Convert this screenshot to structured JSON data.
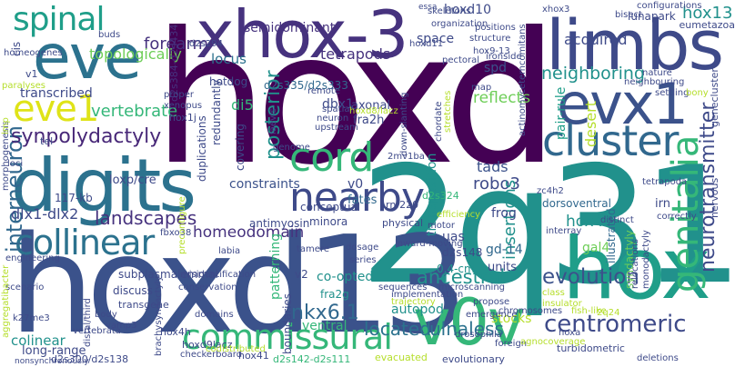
{
  "palette": {
    "dark_purple": "#46327e",
    "purple": "#482878",
    "indigo": "#3e4a89",
    "blue": "#31688e",
    "steel": "#2c728e",
    "teal": "#21918c",
    "green_teal": "#1f9e89",
    "green": "#35b779",
    "light_green": "#6ece58",
    "lime": "#b5de2b",
    "yellow": "#dfe318"
  },
  "words": [
    {
      "text": "hoxd",
      "color": "#440154"
    },
    {
      "text": "2q31",
      "color": "#21918c"
    },
    {
      "text": "hoxd13",
      "color": "#3b528b"
    },
    {
      "text": "xhox-3",
      "color": "#46327e"
    },
    {
      "text": "limbs",
      "color": "#3e4a89"
    },
    {
      "text": "digits",
      "color": "#2c728e"
    },
    {
      "text": "hox",
      "color": "#1f9e89"
    },
    {
      "text": "eve",
      "color": "#2c728e"
    },
    {
      "text": "v0v",
      "color": "#35b779"
    },
    {
      "text": "evx1",
      "color": "#3b528b"
    },
    {
      "text": "cluster",
      "color": "#31688e"
    },
    {
      "text": "nearby",
      "color": "#3e4a89"
    },
    {
      "text": "collinear",
      "color": "#2c728e"
    },
    {
      "text": "commissural",
      "color": "#35b779"
    },
    {
      "text": "genitalia",
      "color": "#35b779"
    },
    {
      "text": "spinal",
      "color": "#1f9e89"
    },
    {
      "text": "eve1",
      "color": "#dfe318"
    },
    {
      "text": "cord",
      "color": "#35b779"
    },
    {
      "text": "interneuron",
      "color": "#31688e"
    },
    {
      "text": "centromeric",
      "color": "#3e4a89"
    },
    {
      "text": "evolution",
      "color": "#3b528b"
    },
    {
      "text": "synpolydactyly",
      "color": "#482878"
    },
    {
      "text": "landscapes",
      "color": "#46327e"
    },
    {
      "text": "homeodomain",
      "color": "#46327e"
    },
    {
      "text": "ancestral",
      "color": "#21918c"
    },
    {
      "text": "neurotransmitter",
      "color": "#3e4a89"
    },
    {
      "text": "nkx6.1",
      "color": "#31688e"
    },
    {
      "text": "located",
      "color": "#2c728e"
    },
    {
      "text": "ulnaless",
      "color": "#2c728e"
    },
    {
      "text": "posterior",
      "color": "#21918c"
    },
    {
      "text": "forearm",
      "color": "#46327e"
    },
    {
      "text": "vertebrate",
      "color": "#35b779"
    },
    {
      "text": "neighboring",
      "color": "#21918c"
    },
    {
      "text": "hoxd10",
      "color": "#3e4a89"
    },
    {
      "text": "hox13",
      "color": "#21918c"
    },
    {
      "text": "reflects",
      "color": "#6ece58"
    },
    {
      "text": "semidominant",
      "color": "#46327e"
    },
    {
      "text": "lunapark",
      "color": "#3e4a89"
    },
    {
      "text": "robo3",
      "color": "#3e4a89"
    },
    {
      "text": "tads",
      "color": "#3b528b"
    },
    {
      "text": "hox4",
      "color": "#21918c"
    },
    {
      "text": "insertions",
      "color": "#21918c"
    },
    {
      "text": "desert",
      "color": "#b5de2b"
    },
    {
      "text": "acquired",
      "color": "#3e4a89"
    },
    {
      "text": "topologically",
      "color": "#6ece58"
    },
    {
      "text": "tetrapods",
      "color": "#46327e"
    },
    {
      "text": "dlx1-dlx2",
      "color": "#3e4a89"
    },
    {
      "text": "dbx1",
      "color": "#3e4a89"
    },
    {
      "text": "di5",
      "color": "#35b779"
    },
    {
      "text": "constraints",
      "color": "#3b528b"
    },
    {
      "text": "locus",
      "color": "#2c728e"
    },
    {
      "text": "space",
      "color": "#3e4a89"
    },
    {
      "text": "spd",
      "color": "#3b528b"
    },
    {
      "text": "frog",
      "color": "#3e4a89"
    },
    {
      "text": "gal4",
      "color": "#6ece58"
    },
    {
      "text": "transcribed",
      "color": "#3e4a89"
    },
    {
      "text": "co-opted",
      "color": "#21918c"
    },
    {
      "text": "patterning",
      "color": "#35b779"
    },
    {
      "text": "stocks",
      "color": "#b5de2b"
    },
    {
      "text": "ventral",
      "color": "#35b779"
    },
    {
      "text": "autopod",
      "color": "#21918c"
    },
    {
      "text": "colinear",
      "color": "#21918c"
    },
    {
      "text": "long-range",
      "color": "#3e4a89"
    },
    {
      "text": "fates",
      "color": "#31688e"
    },
    {
      "text": "v0",
      "color": "#3e4a89"
    },
    {
      "text": "v2",
      "color": "#3e4a89"
    },
    {
      "text": "fra2g",
      "color": "#21918c"
    },
    {
      "text": "boundaries",
      "color": "#3e4a89"
    },
    {
      "text": "transposition",
      "color": "#21918c"
    },
    {
      "text": "dorsoventral",
      "color": "#31688e"
    },
    {
      "text": "pair-rule",
      "color": "#1f9e89"
    },
    {
      "text": "uas",
      "color": "#3e4a89"
    },
    {
      "text": "gd-14",
      "color": "#31688e"
    },
    {
      "text": "units",
      "color": "#3e4a89"
    },
    {
      "text": "irn",
      "color": "#3e4a89"
    },
    {
      "text": "illustrated",
      "color": "#31688e"
    },
    {
      "text": "syndactyly",
      "color": "#6ece58"
    },
    {
      "text": "monodactyly",
      "color": "#3e4a89"
    },
    {
      "text": "loxp/cre",
      "color": "#3e4a89"
    },
    {
      "text": "covering",
      "color": "#3e4a89"
    },
    {
      "text": "redundantly",
      "color": "#3e4a89"
    },
    {
      "text": "duplications",
      "color": "#3e4a89"
    },
    {
      "text": "axonal",
      "color": "#3e4a89"
    },
    {
      "text": "fra2h",
      "color": "#3e4a89"
    },
    {
      "text": "hotdog",
      "color": "#3e4a89"
    },
    {
      "text": "d2s335/d2s333",
      "color": "#31688e"
    },
    {
      "text": "d2s384-d2s434",
      "color": "#46327e"
    },
    {
      "text": "hox1j",
      "color": "#3e4a89"
    },
    {
      "text": "conceptual",
      "color": "#3e4a89"
    },
    {
      "text": "minora",
      "color": "#3e4a89"
    },
    {
      "text": "antimyosin",
      "color": "#3e4a89"
    },
    {
      "text": "d2s324",
      "color": "#35b779"
    },
    {
      "text": "rnf220",
      "color": "#3e4a89"
    },
    {
      "text": "physical",
      "color": "#3e4a89"
    },
    {
      "text": "d2s148",
      "color": "#3e4a89"
    },
    {
      "text": "0.4-cm",
      "color": "#21918c"
    },
    {
      "text": "117-kb",
      "color": "#3e4a89"
    },
    {
      "text": "tel",
      "color": "#3e4a89"
    },
    {
      "text": "v1",
      "color": "#3e4a89"
    },
    {
      "text": "subplasmalemmal",
      "color": "#3e4a89"
    },
    {
      "text": "discuss",
      "color": "#3e4a89"
    },
    {
      "text": "transgene",
      "color": "#3e4a89"
    },
    {
      "text": "hox4h",
      "color": "#3e4a89"
    },
    {
      "text": "hoxd9lacz",
      "color": "#3e4a89"
    },
    {
      "text": "hox41",
      "color": "#3e4a89"
    },
    {
      "text": "d2s142-d2s111",
      "color": "#35b779"
    },
    {
      "text": "d2s300/d2s138",
      "color": "#3e4a89"
    },
    {
      "text": "evacuated",
      "color": "#b5de2b"
    },
    {
      "text": "evolutionary",
      "color": "#3e4a89"
    },
    {
      "text": "turbidometric",
      "color": "#3e4a89"
    },
    {
      "text": "deletions",
      "color": "#3e4a89"
    },
    {
      "text": "hoxa",
      "color": "#3e4a89"
    },
    {
      "text": "foreign",
      "color": "#3e4a89"
    },
    {
      "text": "chromosomes",
      "color": "#3e4a89"
    },
    {
      "text": "fish-like",
      "color": "#b5de2b"
    },
    {
      "text": "emergence",
      "color": "#3e4a89"
    },
    {
      "text": "propose",
      "color": "#3e4a89"
    },
    {
      "text": "class",
      "color": "#b5de2b"
    },
    {
      "text": "insulator",
      "color": "#b5de2b"
    },
    {
      "text": "interray",
      "color": "#3e4a89"
    },
    {
      "text": "correctly",
      "color": "#3e4a89"
    },
    {
      "text": "distinct",
      "color": "#3e4a89"
    },
    {
      "text": "tetrapoda",
      "color": "#3e4a89"
    },
    {
      "text": "nervous",
      "color": "#3e4a89"
    },
    {
      "text": "eumetazoa",
      "color": "#3e4a89"
    },
    {
      "text": "genecluster",
      "color": "#3e4a89"
    },
    {
      "text": "settling",
      "color": "#3e4a89"
    },
    {
      "text": "neighbouring",
      "color": "#3e4a89"
    },
    {
      "text": "configurations",
      "color": "#3e4a89"
    },
    {
      "text": "bisect",
      "color": "#3e4a89"
    },
    {
      "text": "xhox3",
      "color": "#3e4a89"
    },
    {
      "text": "nature",
      "color": "#3e4a89"
    },
    {
      "text": "bony",
      "color": "#b5de2b"
    },
    {
      "text": "positions",
      "color": "#3e4a89"
    },
    {
      "text": "structure",
      "color": "#3e4a89"
    },
    {
      "text": "ironside",
      "color": "#3e4a89"
    },
    {
      "text": "pectoral",
      "color": "#3e4a89"
    },
    {
      "text": "skeletons",
      "color": "#3e4a89"
    },
    {
      "text": "cis",
      "color": "#3e4a89"
    },
    {
      "text": "buds",
      "color": "#3e4a89"
    },
    {
      "text": "homeogenes",
      "color": "#3e4a89"
    },
    {
      "text": "paralyses",
      "color": "#b5de2b"
    },
    {
      "text": "morphogenesis",
      "color": "#3e4a89"
    },
    {
      "text": "loci",
      "color": "#3e4a89"
    },
    {
      "text": "engineering",
      "color": "#3e4a89"
    },
    {
      "text": "scenario",
      "color": "#3e4a89"
    },
    {
      "text": "aggregatibacter",
      "color": "#b5de2b"
    },
    {
      "text": "k27me3",
      "color": "#3e4a89"
    },
    {
      "text": "vertebrata",
      "color": "#3e4a89"
    },
    {
      "text": "nonsynchronously",
      "color": "#3e4a89"
    },
    {
      "text": "brachysyndactyly",
      "color": "#3e4a89"
    },
    {
      "text": "checkerboard",
      "color": "#3e4a89"
    },
    {
      "text": "codistributed",
      "color": "#b5de2b"
    },
    {
      "text": "body",
      "color": "#3e4a89"
    },
    {
      "text": "vamp3",
      "color": "#3e4a89"
    },
    {
      "text": "distal/third",
      "color": "#3e4a89"
    },
    {
      "text": "conservation",
      "color": "#3e4a89"
    },
    {
      "text": "misidentification",
      "color": "#3e4a89"
    },
    {
      "text": "domains",
      "color": "#3e4a89"
    },
    {
      "text": "sequences",
      "color": "#3e4a89"
    },
    {
      "text": "series",
      "color": "#3e4a89"
    },
    {
      "text": "implementation",
      "color": "#3e4a89"
    },
    {
      "text": "trajectory",
      "color": "#b5de2b"
    },
    {
      "text": "drosophila",
      "color": "#3e4a89"
    },
    {
      "text": "microscanning",
      "color": "#3e4a89"
    },
    {
      "text": "inward-moving",
      "color": "#3e4a89"
    },
    {
      "text": "dosage",
      "color": "#3e4a89"
    },
    {
      "text": "tamere",
      "color": "#3e4a89"
    },
    {
      "text": "fbxo38",
      "color": "#3e4a89"
    },
    {
      "text": "labia",
      "color": "#3e4a89"
    },
    {
      "text": "precontigure",
      "color": "#b5de2b"
    },
    {
      "text": "efficiency",
      "color": "#b5de2b"
    },
    {
      "text": "motor",
      "color": "#3e4a89"
    },
    {
      "text": "genome",
      "color": "#3e4a89"
    },
    {
      "text": "upstream",
      "color": "#3e4a89"
    },
    {
      "text": "neuron",
      "color": "#3e4a89"
    },
    {
      "text": "remote",
      "color": "#3e4a89"
    },
    {
      "text": "spatial",
      "color": "#3e4a89"
    },
    {
      "text": "hoxd8/lacz",
      "color": "#b5de2b"
    },
    {
      "text": "laevis",
      "color": "#3e4a89"
    },
    {
      "text": "proper",
      "color": "#3e4a89"
    },
    {
      "text": "xenopus",
      "color": "#3e4a89"
    },
    {
      "text": "d2s294",
      "color": "#3e4a89"
    },
    {
      "text": "hoxd11",
      "color": "#3e4a89"
    },
    {
      "text": "hox9-13",
      "color": "#3e4a89"
    },
    {
      "text": "zc4h2",
      "color": "#3e4a89"
    },
    {
      "text": "2q24",
      "color": "#b5de2b"
    },
    {
      "text": "map",
      "color": "#3e4a89"
    },
    {
      "text": "essa",
      "color": "#3e4a89"
    },
    {
      "text": "organization",
      "color": "#3e4a89"
    },
    {
      "text": "chordate",
      "color": "#3e4a89"
    },
    {
      "text": "stretches",
      "color": "#b5de2b"
    },
    {
      "text": "down-slanting",
      "color": "#3e4a89"
    },
    {
      "text": "actinomycetemcomitans",
      "color": "#3e4a89"
    },
    {
      "text": "relocations",
      "color": "#3e4a89"
    },
    {
      "text": "lmp",
      "color": "#b5de2b"
    },
    {
      "text": "2mv1ba",
      "color": "#3e4a89"
    },
    {
      "text": "agnocoverage",
      "color": "#b5de2b"
    }
  ]
}
